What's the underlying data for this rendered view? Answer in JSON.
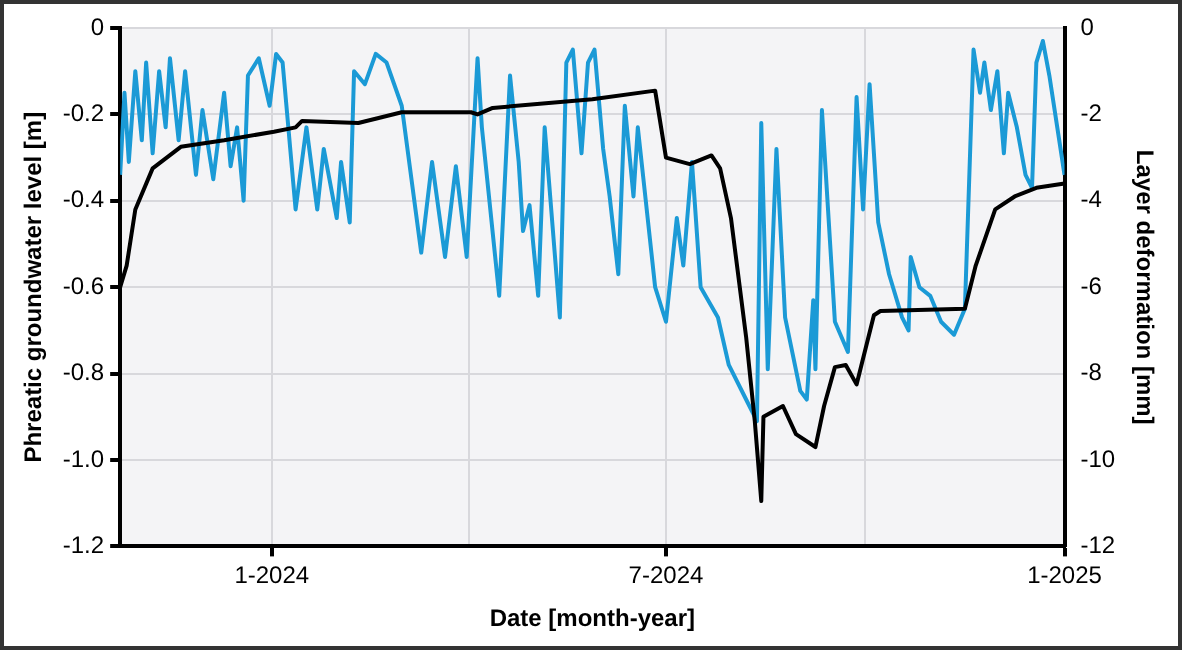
{
  "chart_data": {
    "type": "line",
    "xlabel": "Date [month-year]",
    "ylabel": "Phreatic groundwater level [m]",
    "y2label": "Layer deformation [mm]",
    "xlim": [
      "2023-10-23",
      "2025-01-01"
    ],
    "xticks": [
      {
        "value": "2024-01-01",
        "label": "1-2024"
      },
      {
        "value": "2024-04-01",
        "label": null
      },
      {
        "value": "2024-07-01",
        "label": "7-2024"
      },
      {
        "value": "2024-10-01",
        "label": null
      },
      {
        "value": "2025-01-01",
        "label": "1-2025"
      }
    ],
    "ylim": [
      -1.2,
      0
    ],
    "yticks": [
      -1.2,
      {
        "value": -1,
        "label": "-1.0"
      },
      -0.8,
      -0.6,
      -0.4,
      -0.2,
      0
    ],
    "y2lim": [
      -12,
      0
    ],
    "y2ticks": [
      -12,
      -10,
      -8,
      -6,
      -4,
      -2,
      0
    ],
    "grid": true,
    "legend": false,
    "marker": "none",
    "line_style": "solid",
    "series": [
      {
        "color": "#1b9ad6",
        "x": [
          "2023-10-23",
          "2023-10-25",
          "2023-10-27",
          "2023-10-30",
          "2023-11-02",
          "2023-11-04",
          "2023-11-07",
          "2023-11-10",
          "2023-11-13",
          "2023-11-15",
          "2023-11-19",
          "2023-11-22",
          "2023-11-27",
          "2023-11-30",
          "2023-12-05",
          "2023-12-10",
          "2023-12-13",
          "2023-12-16",
          "2023-12-19",
          "2023-12-21",
          "2023-12-26",
          "2023-12-31",
          "2024-01-03",
          "2024-01-06",
          "2024-01-12",
          "2024-01-17",
          "2024-01-22",
          "2024-01-25",
          "2024-01-31",
          "2024-02-02",
          "2024-02-06",
          "2024-02-08",
          "2024-02-13",
          "2024-02-18",
          "2024-02-23",
          "2024-03-01",
          "2024-03-10",
          "2024-03-15",
          "2024-03-21",
          "2024-03-26",
          "2024-03-31",
          "2024-04-05",
          "2024-04-07",
          "2024-04-15",
          "2024-04-20",
          "2024-04-24",
          "2024-04-26",
          "2024-04-29",
          "2024-05-03",
          "2024-05-06",
          "2024-05-13",
          "2024-05-16",
          "2024-05-19",
          "2024-05-23",
          "2024-05-26",
          "2024-05-29",
          "2024-06-02",
          "2024-06-05",
          "2024-06-09",
          "2024-06-12",
          "2024-06-16",
          "2024-06-18",
          "2024-06-26",
          "2024-07-01",
          "2024-07-06",
          "2024-07-09",
          "2024-07-13",
          "2024-07-17",
          "2024-07-25",
          "2024-07-30",
          "2024-08-07",
          "2024-08-12",
          "2024-08-14",
          "2024-08-17",
          "2024-08-21",
          "2024-08-25",
          "2024-09-01",
          "2024-09-04",
          "2024-09-07",
          "2024-09-08",
          "2024-09-11",
          "2024-09-17",
          "2024-09-23",
          "2024-09-27",
          "2024-09-30",
          "2024-10-03",
          "2024-10-07",
          "2024-10-12",
          "2024-10-18",
          "2024-10-21",
          "2024-10-22",
          "2024-10-26",
          "2024-10-31",
          "2024-11-05",
          "2024-11-11",
          "2024-11-16",
          "2024-11-20",
          "2024-11-23",
          "2024-11-25",
          "2024-11-28",
          "2024-12-01",
          "2024-12-04",
          "2024-12-06",
          "2024-12-10",
          "2024-12-14",
          "2024-12-17",
          "2024-12-19",
          "2024-12-22",
          "2024-12-25",
          "2025-01-01"
        ],
        "values": [
          -0.34,
          -0.15,
          -0.31,
          -0.1,
          -0.26,
          -0.08,
          -0.29,
          -0.1,
          -0.23,
          -0.07,
          -0.26,
          -0.1,
          -0.34,
          -0.19,
          -0.35,
          -0.15,
          -0.32,
          -0.23,
          -0.4,
          -0.11,
          -0.07,
          -0.18,
          -0.06,
          -0.08,
          -0.42,
          -0.23,
          -0.42,
          -0.28,
          -0.44,
          -0.31,
          -0.45,
          -0.1,
          -0.13,
          -0.06,
          -0.08,
          -0.18,
          -0.52,
          -0.31,
          -0.53,
          -0.32,
          -0.53,
          -0.07,
          -0.23,
          -0.62,
          -0.11,
          -0.31,
          -0.47,
          -0.41,
          -0.62,
          -0.23,
          -0.67,
          -0.08,
          -0.05,
          -0.29,
          -0.08,
          -0.05,
          -0.28,
          -0.39,
          -0.57,
          -0.18,
          -0.39,
          -0.23,
          -0.6,
          -0.68,
          -0.44,
          -0.55,
          -0.31,
          -0.6,
          -0.67,
          -0.78,
          -0.86,
          -0.91,
          -0.22,
          -0.79,
          -0.28,
          -0.67,
          -0.84,
          -0.86,
          -0.63,
          -0.79,
          -0.19,
          -0.68,
          -0.75,
          -0.16,
          -0.42,
          -0.13,
          -0.45,
          -0.57,
          -0.67,
          -0.7,
          -0.53,
          -0.6,
          -0.62,
          -0.68,
          -0.71,
          -0.65,
          -0.05,
          -0.15,
          -0.08,
          -0.19,
          -0.1,
          -0.29,
          -0.15,
          -0.23,
          -0.34,
          -0.37,
          -0.08,
          -0.03,
          -0.11,
          -0.34
        ]
      },
      {
        "color": "#000000",
        "axis": "y2",
        "x": [
          "2023-10-23",
          "2023-10-26",
          "2023-10-30",
          "2023-11-07",
          "2023-11-20",
          "2023-12-10",
          "2024-01-02",
          "2024-01-12",
          "2024-01-15",
          "2024-02-10",
          "2024-03-01",
          "2024-04-02",
          "2024-04-05",
          "2024-04-12",
          "2024-05-28",
          "2024-06-26",
          "2024-07-01",
          "2024-07-12",
          "2024-07-22",
          "2024-07-26",
          "2024-07-31",
          "2024-08-07",
          "2024-08-11",
          "2024-08-14",
          "2024-08-15",
          "2024-08-24",
          "2024-08-30",
          "2024-09-08",
          "2024-09-12",
          "2024-09-17",
          "2024-09-22",
          "2024-09-27",
          "2024-10-05",
          "2024-10-08",
          "2024-11-16",
          "2024-11-21",
          "2024-11-30",
          "2024-12-09",
          "2024-12-19",
          "2025-01-01"
        ],
        "values": [
          -6.0,
          -5.5,
          -4.2,
          -3.25,
          -2.75,
          -2.6,
          -2.4,
          -2.3,
          -2.15,
          -2.2,
          -1.95,
          -1.95,
          -2.0,
          -1.85,
          -1.65,
          -1.45,
          -3.0,
          -3.15,
          -2.95,
          -3.25,
          -4.4,
          -7.15,
          -9.1,
          -10.95,
          -9.0,
          -8.75,
          -9.4,
          -9.7,
          -8.75,
          -7.85,
          -7.8,
          -8.25,
          -6.65,
          -6.55,
          -6.5,
          -5.5,
          -4.2,
          -3.9,
          -3.7,
          -3.6
        ]
      }
    ]
  }
}
